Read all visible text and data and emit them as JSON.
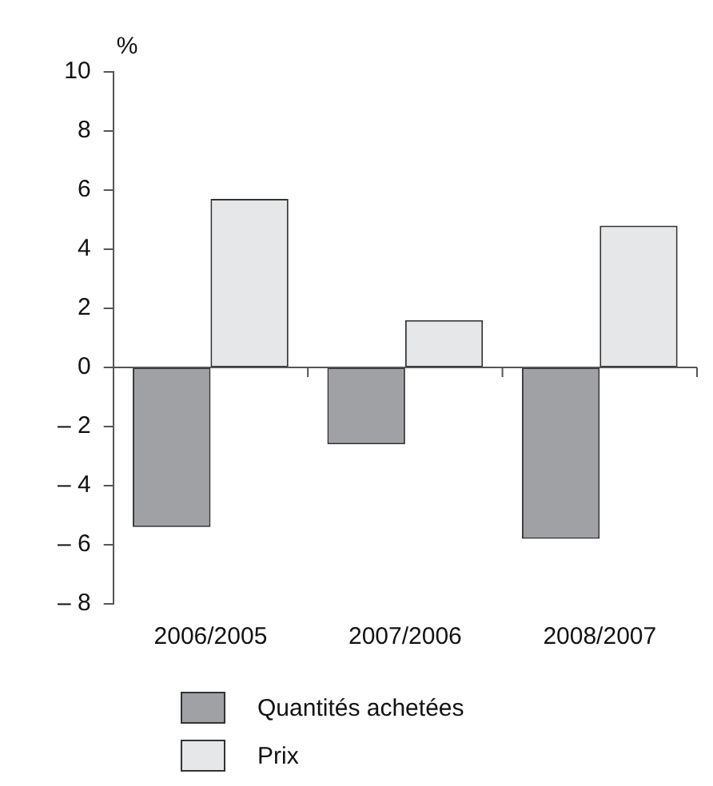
{
  "chart_data": {
    "type": "bar",
    "ylabel": "%",
    "categories": [
      "2006/2005",
      "2007/2006",
      "2008/2007"
    ],
    "series": [
      {
        "name": "Quantités achetées",
        "color": "#a0a1a4",
        "values": [
          -5.4,
          -2.6,
          -5.8
        ]
      },
      {
        "name": "Prix",
        "color": "#e6e7e8",
        "values": [
          5.7,
          1.6,
          4.8
        ]
      }
    ],
    "ylim": [
      -8,
      10
    ],
    "yticks": [
      {
        "value": -8,
        "label": "– 8"
      },
      {
        "value": -6,
        "label": "– 6"
      },
      {
        "value": -4,
        "label": "– 4"
      },
      {
        "value": -2,
        "label": "– 2"
      },
      0,
      2,
      4,
      6,
      8,
      10
    ],
    "ref_lines": [
      {
        "axis": "y",
        "value": 0,
        "color": "#555555"
      }
    ],
    "grid": false,
    "legend": "bottom"
  }
}
